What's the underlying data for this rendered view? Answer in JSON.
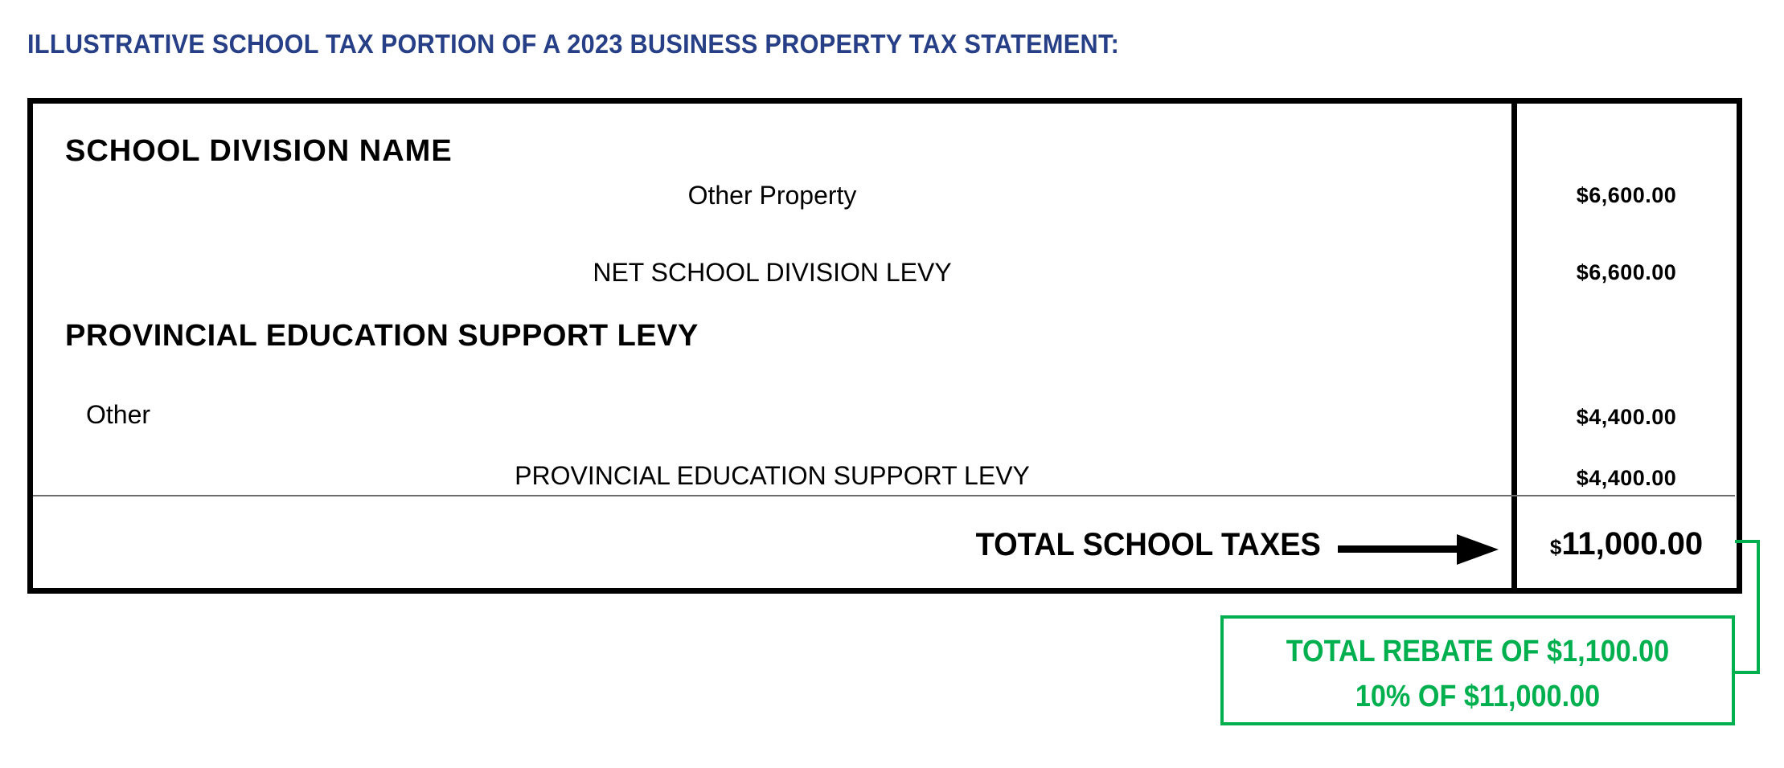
{
  "title": "ILLUSTRATIVE SCHOOL TAX PORTION OF A 2023 BUSINESS PROPERTY TAX STATEMENT:",
  "statement": {
    "school_division": {
      "heading": "SCHOOL DIVISION NAME",
      "line_label": "Other Property",
      "line_amount": "$6,600.00",
      "net_label": "NET SCHOOL DIVISION LEVY",
      "net_amount": "$6,600.00"
    },
    "provincial": {
      "heading": "PROVINCIAL EDUCATION SUPPORT LEVY",
      "line_label": "Other",
      "line_amount": "$4,400.00",
      "subtotal_label": "PROVINCIAL EDUCATION SUPPORT LEVY",
      "subtotal_amount": "$4,400.00"
    },
    "total": {
      "label": "TOTAL SCHOOL TAXES",
      "currency": "$",
      "amount": "11,000.00"
    }
  },
  "rebate": {
    "line1": "TOTAL REBATE OF $1,100.00",
    "line2": "10% OF $11,000.00"
  },
  "colors": {
    "title": "#263f87",
    "rebate": "#00b04f",
    "border": "#000000"
  }
}
